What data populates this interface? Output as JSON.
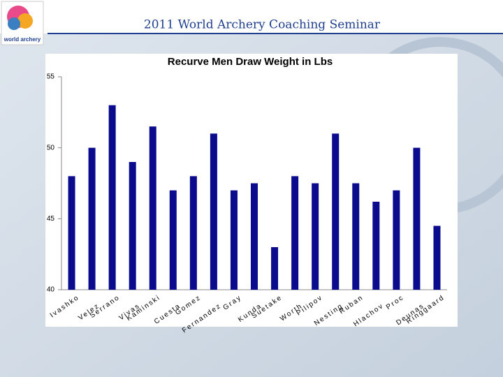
{
  "header": {
    "title": "2011 World Archery Coaching Seminar",
    "logo_text": "world archery"
  },
  "chart_data": {
    "type": "bar",
    "title": "Recurve Men Draw Weight in Lbs",
    "categories": [
      "Ivashko",
      "Velez",
      "Serrano",
      "Vivas",
      "Kaminski",
      "Cuesta",
      "Gomez",
      "Fernandez",
      "Gray",
      "Kunda",
      "Suetake",
      "Worth",
      "Pilipov",
      "Nesting",
      "Ruban",
      "Hlachov",
      "Proc",
      "Deunas",
      "Ringgaard"
    ],
    "values": [
      48,
      50,
      53,
      49,
      51.5,
      47,
      48,
      51,
      47,
      47.5,
      43,
      48,
      47.5,
      51,
      47.5,
      46.2,
      47,
      50,
      44.5
    ],
    "color": "#0b0b8e",
    "ylim": [
      40,
      55
    ],
    "yticks": [
      40,
      45,
      50,
      55
    ],
    "grid": false
  }
}
